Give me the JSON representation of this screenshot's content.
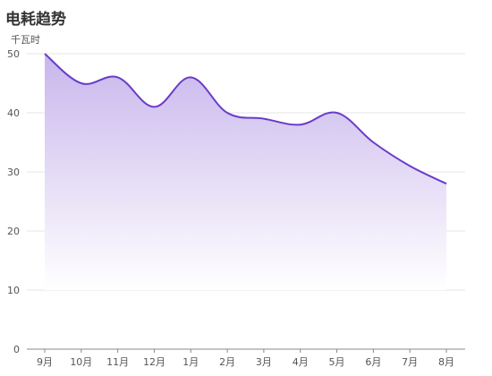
{
  "chart_data": {
    "type": "area",
    "title": "电耗趋势",
    "ylabel": "千瓦时",
    "xlabel": "",
    "categories": [
      "9月",
      "10月",
      "11月",
      "12月",
      "1月",
      "2月",
      "3月",
      "4月",
      "5月",
      "6月",
      "7月",
      "8月"
    ],
    "series": [
      {
        "values": [
          50,
          45,
          46,
          41,
          46,
          40,
          39,
          38,
          40,
          35,
          31,
          28
        ]
      }
    ],
    "ylim": [
      0,
      50
    ],
    "yticks": [
      0,
      10,
      20,
      30,
      40,
      50
    ],
    "grid": true,
    "line_color": "#6a3bc9",
    "fill_color_top": "#c8b6ec",
    "fill_color_bottom": "#ffffff"
  }
}
